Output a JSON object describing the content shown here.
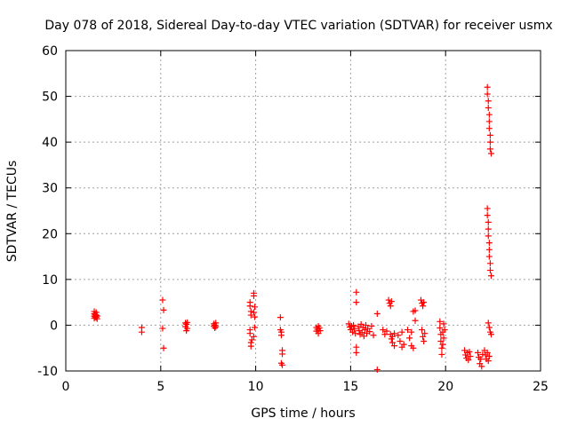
{
  "chart_data": {
    "type": "scatter",
    "title": "Day 078 of 2018, Sidereal Day-to-day VTEC variation (SDTVAR) for receiver usmx",
    "xlabel": "GPS time / hours",
    "ylabel": "SDTVAR / TECUs",
    "xlim": [
      0,
      25
    ],
    "ylim": [
      -10,
      60
    ],
    "xticks": [
      0,
      5,
      10,
      15,
      20,
      25
    ],
    "yticks": [
      -10,
      0,
      10,
      20,
      30,
      40,
      50,
      60
    ],
    "xtick_labels": [
      "0",
      "5",
      "10",
      "15",
      "20",
      "25"
    ],
    "ytick_labels": [
      "-10",
      "0",
      "10",
      "20",
      "30",
      "40",
      "50",
      "60"
    ],
    "grid": true,
    "marker": "plus",
    "color": "#ff0000",
    "series": [
      {
        "name": "SDTVAR",
        "points": [
          [
            1.5,
            1.5
          ],
          [
            1.5,
            2.0
          ],
          [
            1.5,
            2.5
          ],
          [
            1.5,
            3.0
          ],
          [
            1.55,
            1.8
          ],
          [
            1.55,
            2.3
          ],
          [
            1.6,
            1.7
          ],
          [
            1.6,
            2.2
          ],
          [
            1.6,
            2.8
          ],
          [
            1.65,
            1.4
          ],
          [
            1.65,
            2.0
          ],
          [
            4.0,
            -0.5
          ],
          [
            4.0,
            -1.5
          ],
          [
            5.1,
            5.5
          ],
          [
            5.15,
            3.3
          ],
          [
            5.1,
            -0.7
          ],
          [
            5.15,
            -5.0
          ],
          [
            6.3,
            0.5
          ],
          [
            6.3,
            -0.3
          ],
          [
            6.35,
            -1.2
          ],
          [
            6.35,
            0.2
          ],
          [
            6.4,
            -0.7
          ],
          [
            6.4,
            0.6
          ],
          [
            7.8,
            0.3
          ],
          [
            7.8,
            -0.2
          ],
          [
            7.85,
            0.0
          ],
          [
            7.85,
            -0.6
          ],
          [
            7.9,
            0.5
          ],
          [
            7.9,
            -0.3
          ],
          [
            9.7,
            5.0
          ],
          [
            9.7,
            4.2
          ],
          [
            9.75,
            3.0
          ],
          [
            9.75,
            2.2
          ],
          [
            9.7,
            -1.0
          ],
          [
            9.7,
            -1.8
          ],
          [
            9.75,
            -3.8
          ],
          [
            9.75,
            -4.6
          ],
          [
            9.8,
            -3.2
          ],
          [
            9.9,
            7.0
          ],
          [
            9.9,
            6.4
          ],
          [
            9.95,
            4.0
          ],
          [
            9.9,
            2.8
          ],
          [
            9.95,
            1.8
          ],
          [
            9.95,
            -0.5
          ],
          [
            9.9,
            -2.5
          ],
          [
            11.3,
            1.7
          ],
          [
            11.3,
            -1.0
          ],
          [
            11.35,
            -2.2
          ],
          [
            11.35,
            -1.5
          ],
          [
            11.4,
            -5.5
          ],
          [
            11.4,
            -6.3
          ],
          [
            11.35,
            -8.3
          ],
          [
            11.4,
            -8.7
          ],
          [
            13.2,
            -0.5
          ],
          [
            13.2,
            -1.3
          ],
          [
            13.25,
            -0.9
          ],
          [
            13.3,
            -0.2
          ],
          [
            13.3,
            -1.8
          ],
          [
            13.35,
            -0.6
          ],
          [
            13.4,
            -1.2
          ],
          [
            14.9,
            0.3
          ],
          [
            14.95,
            -0.4
          ],
          [
            15.0,
            -1.0
          ],
          [
            15.05,
            -0.2
          ],
          [
            15.1,
            -1.5
          ],
          [
            15.15,
            0.0
          ],
          [
            15.2,
            -0.8
          ],
          [
            15.25,
            -1.8
          ],
          [
            15.3,
            7.2
          ],
          [
            15.3,
            5.0
          ],
          [
            15.3,
            -4.8
          ],
          [
            15.3,
            -6.0
          ],
          [
            15.4,
            -0.3
          ],
          [
            15.45,
            -1.2
          ],
          [
            15.5,
            -2.0
          ],
          [
            15.55,
            0.2
          ],
          [
            15.6,
            -1.6
          ],
          [
            15.65,
            -0.5
          ],
          [
            15.7,
            -2.4
          ],
          [
            15.75,
            -1.0
          ],
          [
            15.8,
            0.0
          ],
          [
            15.85,
            -1.8
          ],
          [
            15.9,
            -0.7
          ],
          [
            16.0,
            -1.4
          ],
          [
            16.1,
            -0.2
          ],
          [
            16.2,
            -2.2
          ],
          [
            16.4,
            2.5
          ],
          [
            16.4,
            -9.7
          ],
          [
            16.7,
            -1.0
          ],
          [
            16.8,
            -2.0
          ],
          [
            16.9,
            -1.3
          ],
          [
            17.0,
            5.5
          ],
          [
            17.05,
            4.8
          ],
          [
            17.1,
            4.2
          ],
          [
            17.15,
            5.2
          ],
          [
            17.1,
            -2.0
          ],
          [
            17.15,
            -3.0
          ],
          [
            17.2,
            -3.8
          ],
          [
            17.2,
            -2.5
          ],
          [
            17.3,
            -4.5
          ],
          [
            17.3,
            -1.8
          ],
          [
            17.5,
            -2.2
          ],
          [
            17.6,
            -3.5
          ],
          [
            17.7,
            -4.8
          ],
          [
            17.7,
            -1.5
          ],
          [
            17.8,
            -4.2
          ],
          [
            18.0,
            -1.0
          ],
          [
            18.1,
            -2.8
          ],
          [
            18.2,
            -4.5
          ],
          [
            18.2,
            -1.5
          ],
          [
            18.3,
            -5.0
          ],
          [
            18.3,
            3.0
          ],
          [
            18.4,
            3.2
          ],
          [
            18.4,
            1.0
          ],
          [
            18.7,
            5.5
          ],
          [
            18.75,
            4.8
          ],
          [
            18.8,
            4.2
          ],
          [
            18.85,
            5.0
          ],
          [
            18.75,
            -1.0
          ],
          [
            18.8,
            -2.5
          ],
          [
            18.85,
            -3.5
          ],
          [
            18.9,
            -1.8
          ],
          [
            19.7,
            0.8
          ],
          [
            19.7,
            -0.6
          ],
          [
            19.75,
            -2.0
          ],
          [
            19.75,
            -3.5
          ],
          [
            19.8,
            -5.0
          ],
          [
            19.8,
            -6.4
          ],
          [
            19.85,
            -1.5
          ],
          [
            19.85,
            -4.2
          ],
          [
            19.9,
            0.3
          ],
          [
            19.9,
            -2.8
          ],
          [
            19.95,
            -1.0
          ],
          [
            21.0,
            -5.5
          ],
          [
            21.05,
            -6.5
          ],
          [
            21.1,
            -7.2
          ],
          [
            21.15,
            -6.0
          ],
          [
            21.2,
            -7.6
          ],
          [
            21.25,
            -5.8
          ],
          [
            21.3,
            -6.8
          ],
          [
            21.7,
            -6.0
          ],
          [
            21.75,
            -7.0
          ],
          [
            21.8,
            -8.4
          ],
          [
            21.85,
            -7.4
          ],
          [
            21.9,
            -9.0
          ],
          [
            21.95,
            -6.4
          ],
          [
            22.05,
            -5.5
          ],
          [
            22.1,
            -6.5
          ],
          [
            22.15,
            -7.4
          ],
          [
            22.2,
            -6.0
          ],
          [
            22.25,
            -7.8
          ],
          [
            22.3,
            -6.8
          ],
          [
            22.2,
            52.0
          ],
          [
            22.2,
            50.5
          ],
          [
            22.25,
            49.0
          ],
          [
            22.25,
            47.5
          ],
          [
            22.3,
            46.0
          ],
          [
            22.3,
            44.5
          ],
          [
            22.3,
            43.0
          ],
          [
            22.35,
            41.5
          ],
          [
            22.35,
            40.0
          ],
          [
            22.35,
            38.5
          ],
          [
            22.4,
            37.5
          ],
          [
            22.2,
            25.5
          ],
          [
            22.2,
            24.0
          ],
          [
            22.25,
            22.5
          ],
          [
            22.25,
            21.0
          ],
          [
            22.25,
            19.5
          ],
          [
            22.3,
            18.0
          ],
          [
            22.3,
            16.5
          ],
          [
            22.3,
            15.0
          ],
          [
            22.35,
            13.5
          ],
          [
            22.35,
            12.0
          ],
          [
            22.4,
            10.8
          ],
          [
            22.25,
            0.5
          ],
          [
            22.3,
            -0.5
          ],
          [
            22.35,
            -1.5
          ],
          [
            22.4,
            -2.0
          ]
        ]
      }
    ]
  }
}
